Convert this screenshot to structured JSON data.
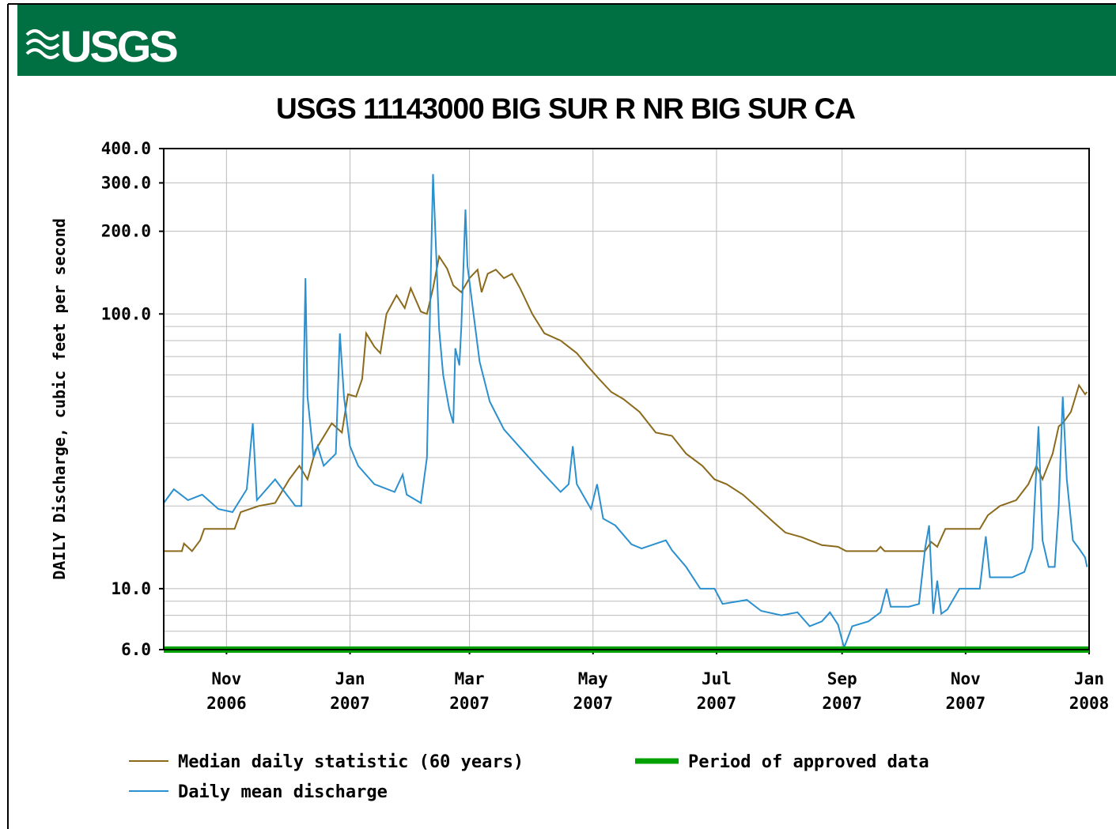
{
  "header": {
    "logo": "USGS"
  },
  "chart_data": {
    "type": "line",
    "title": "USGS 11143000 BIG SUR R NR BIG SUR CA",
    "y_label": "DAILY Discharge, cubic feet per second",
    "log_y": true,
    "grid": true,
    "xlim": [
      "2006-10-01",
      "2008-01-01"
    ],
    "xticks": [
      {
        "value": "2006-11-01",
        "label": "Nov\n2006"
      },
      {
        "value": "2007-01-01",
        "label": "Jan\n2007"
      },
      {
        "value": "2007-03-01",
        "label": "Mar\n2007"
      },
      {
        "value": "2007-05-01",
        "label": "May\n2007"
      },
      {
        "value": "2007-07-01",
        "label": "Jul\n2007"
      },
      {
        "value": "2007-09-01",
        "label": "Sep\n2007"
      },
      {
        "value": "2007-11-01",
        "label": "Nov\n2007"
      },
      {
        "value": "2008-01-01",
        "label": "Jan\n2008"
      }
    ],
    "ylim": [
      6,
      400
    ],
    "yticks": [
      {
        "value": 6,
        "label": "6.0"
      },
      {
        "value": 10,
        "label": "10.0"
      },
      {
        "value": 100,
        "label": "100.0"
      },
      {
        "value": 200,
        "label": "200.0"
      },
      {
        "value": 300,
        "label": "300.0"
      },
      {
        "value": 400,
        "label": "400.0"
      }
    ],
    "yminor": [
      7,
      8,
      9,
      20,
      30,
      40,
      50,
      60,
      70,
      80,
      90
    ],
    "series": [
      {
        "name": "Median daily statistic (60 years)",
        "color": "#8c6a1c",
        "x": [
          "2006-10-01",
          "2006-10-10",
          "2006-10-11",
          "2006-10-15",
          "2006-10-19",
          "2006-10-21",
          "2006-11-05",
          "2006-11-08",
          "2006-11-17",
          "2006-11-25",
          "2006-12-02",
          "2006-12-07",
          "2006-12-11",
          "2006-12-15",
          "2006-12-23",
          "2006-12-28",
          "2006-12-31",
          "2007-01-04",
          "2007-01-07",
          "2007-01-09",
          "2007-01-13",
          "2007-01-16",
          "2007-01-19",
          "2007-01-24",
          "2007-01-28",
          "2007-01-31",
          "2007-02-05",
          "2007-02-08",
          "2007-02-11",
          "2007-02-14",
          "2007-02-18",
          "2007-02-21",
          "2007-02-25",
          "2007-03-01",
          "2007-03-05",
          "2007-03-07",
          "2007-03-10",
          "2007-03-14",
          "2007-03-18",
          "2007-03-22",
          "2007-03-26",
          "2007-04-01",
          "2007-04-07",
          "2007-04-15",
          "2007-04-23",
          "2007-04-28",
          "2007-05-04",
          "2007-05-10",
          "2007-05-16",
          "2007-05-24",
          "2007-06-01",
          "2007-06-09",
          "2007-06-16",
          "2007-06-24",
          "2007-06-30",
          "2007-07-06",
          "2007-07-14",
          "2007-07-22",
          "2007-07-29",
          "2007-08-04",
          "2007-08-12",
          "2007-08-22",
          "2007-08-30",
          "2007-09-03",
          "2007-09-18",
          "2007-09-20",
          "2007-09-22",
          "2007-10-12",
          "2007-10-15",
          "2007-10-18",
          "2007-10-22",
          "2007-11-08",
          "2007-11-12",
          "2007-11-18",
          "2007-11-26",
          "2007-12-02",
          "2007-12-06",
          "2007-12-09",
          "2007-12-14",
          "2007-12-17",
          "2007-12-19",
          "2007-12-23",
          "2007-12-27",
          "2007-12-30",
          "2007-12-31"
        ],
        "values": [
          13.7,
          13.7,
          14.6,
          13.7,
          15,
          16.5,
          16.5,
          19,
          20,
          20.5,
          25,
          28,
          25,
          32,
          40,
          37,
          51,
          50,
          58,
          85,
          76,
          72,
          100,
          117,
          105,
          124,
          102,
          100,
          124,
          162,
          146,
          127,
          120,
          135,
          145,
          120,
          140,
          145,
          135,
          140,
          124,
          100,
          85,
          80,
          72,
          65,
          58,
          52,
          49,
          44,
          37,
          36,
          31,
          28,
          25,
          24,
          22,
          19.5,
          17.5,
          16,
          15.4,
          14.4,
          14.2,
          13.7,
          13.7,
          14.2,
          13.7,
          13.7,
          14.8,
          14.2,
          16.5,
          16.5,
          18.5,
          20,
          21,
          24,
          28,
          25,
          31,
          39,
          40,
          44,
          55,
          51,
          52
        ]
      },
      {
        "name": "Daily mean discharge",
        "color": "#2a90d0",
        "x": [
          "2006-10-01",
          "2006-10-06",
          "2006-10-13",
          "2006-10-20",
          "2006-10-28",
          "2006-11-04",
          "2006-11-11",
          "2006-11-14",
          "2006-11-16",
          "2006-11-25",
          "2006-12-05",
          "2006-12-08",
          "2006-12-10",
          "2006-12-11",
          "2006-12-14",
          "2006-12-16",
          "2006-12-19",
          "2006-12-25",
          "2006-12-27",
          "2006-12-29",
          "2007-01-01",
          "2007-01-05",
          "2007-01-13",
          "2007-01-23",
          "2007-01-27",
          "2007-01-29",
          "2007-02-05",
          "2007-02-08",
          "2007-02-10",
          "2007-02-11",
          "2007-02-12",
          "2007-02-14",
          "2007-02-16",
          "2007-02-19",
          "2007-02-21",
          "2007-02-22",
          "2007-02-24",
          "2007-02-25",
          "2007-02-27",
          "2007-02-28",
          "2007-03-03",
          "2007-03-06",
          "2007-03-11",
          "2007-03-18",
          "2007-03-27",
          "2007-04-07",
          "2007-04-15",
          "2007-04-19",
          "2007-04-21",
          "2007-04-23",
          "2007-04-30",
          "2007-05-03",
          "2007-05-06",
          "2007-05-12",
          "2007-05-20",
          "2007-05-25",
          "2007-05-31",
          "2007-06-06",
          "2007-06-09",
          "2007-06-16",
          "2007-06-23",
          "2007-06-30",
          "2007-07-04",
          "2007-07-16",
          "2007-07-23",
          "2007-08-02",
          "2007-08-10",
          "2007-08-16",
          "2007-08-22",
          "2007-08-26",
          "2007-08-30",
          "2007-09-02",
          "2007-09-06",
          "2007-09-14",
          "2007-09-20",
          "2007-09-23",
          "2007-09-25",
          "2007-10-04",
          "2007-10-09",
          "2007-10-12",
          "2007-10-14",
          "2007-10-16",
          "2007-10-18",
          "2007-10-20",
          "2007-10-23",
          "2007-10-29",
          "2007-11-08",
          "2007-11-11",
          "2007-11-13",
          "2007-11-24",
          "2007-11-30",
          "2007-12-04",
          "2007-12-05",
          "2007-12-07",
          "2007-12-09",
          "2007-12-12",
          "2007-12-15",
          "2007-12-17",
          "2007-12-19",
          "2007-12-21",
          "2007-12-24",
          "2007-12-27",
          "2007-12-30",
          "2007-12-31"
        ],
        "values": [
          20.5,
          23,
          21,
          22,
          19.5,
          19,
          23,
          40,
          21,
          25,
          20,
          20,
          135,
          50,
          30,
          33,
          28,
          31,
          85,
          50,
          33,
          28,
          24,
          22.5,
          26,
          22,
          20.5,
          30,
          150,
          323,
          210,
          88,
          60,
          45,
          40,
          75,
          65,
          90,
          240,
          150,
          100,
          67,
          48,
          38,
          32,
          26,
          22.5,
          24,
          33,
          24,
          19.5,
          24,
          18,
          17,
          14.5,
          14,
          14.5,
          15,
          13.8,
          12,
          10,
          10,
          8.8,
          9.1,
          8.3,
          8,
          8.2,
          7.3,
          7.6,
          8.2,
          7.4,
          6.1,
          7.3,
          7.6,
          8.2,
          10,
          8.6,
          8.6,
          8.8,
          14,
          17,
          8.1,
          10.7,
          8.1,
          8.4,
          10,
          10,
          15.5,
          11,
          11,
          11.5,
          14,
          20,
          39,
          15,
          12,
          12,
          20,
          50,
          25,
          15,
          14,
          13,
          12
        ]
      }
    ],
    "approved": {
      "name": "Period of approved data",
      "color": "#00a000",
      "x": [
        "2006-10-01",
        "2008-01-01"
      ]
    }
  }
}
